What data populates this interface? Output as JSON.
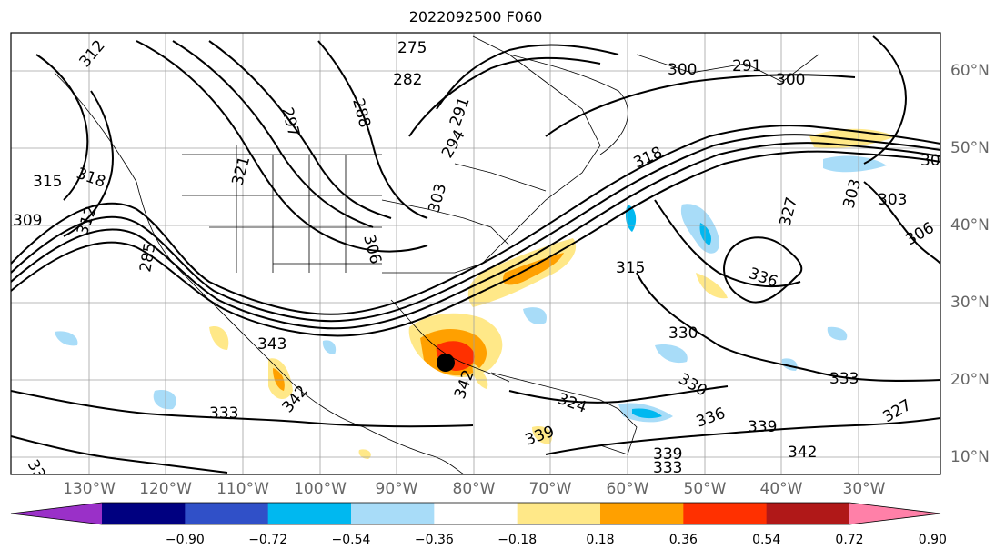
{
  "title": "2022092500 F060",
  "longitude_labels": [
    "130°W",
    "120°W",
    "110°W",
    "100°W",
    "90°W",
    "80°W",
    "70°W",
    "60°W",
    "50°W",
    "40°W",
    "30°W"
  ],
  "latitude_labels": [
    "60°N",
    "50°N",
    "40°N",
    "30°N",
    "20°N",
    "10°N"
  ],
  "colorbar": {
    "ticks": [
      "−0.90",
      "−0.72",
      "−0.54",
      "−0.36",
      "−0.18",
      "0.18",
      "0.36",
      "0.54",
      "0.72",
      "0.90"
    ],
    "colors": [
      "#9a30c8",
      "#000080",
      "#3050c8",
      "#00b8f0",
      "#a8dcf8",
      "#ffffff",
      "#ffe888",
      "#ffa000",
      "#ff3000",
      "#b01818",
      "#ff80a8"
    ]
  },
  "contour_labels": [
    "275",
    "282",
    "288",
    "297",
    "300",
    "291",
    "300",
    "312",
    "309",
    "315",
    "318",
    "312",
    "321",
    "306",
    "303",
    "294",
    "291",
    "303",
    "318",
    "327",
    "303",
    "306",
    "315",
    "336",
    "330",
    "330",
    "333",
    "327",
    "324",
    "342",
    "343",
    "333",
    "336",
    "339",
    "339",
    "342",
    "339",
    "339",
    "333",
    "342",
    "285",
    "30"
  ]
}
